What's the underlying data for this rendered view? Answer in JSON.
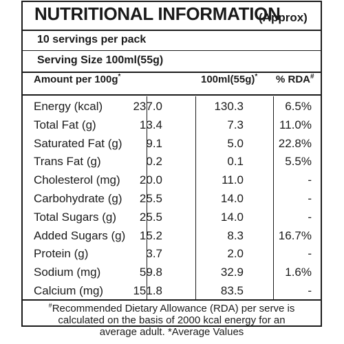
{
  "title": "NUTRITIONAL INFORMATION",
  "title_note": "(Approx)",
  "servings_per_pack": "10 servings per pack",
  "serving_size": "Serving Size 100ml(55g)",
  "columns": {
    "name": "Amount per 100g",
    "name_mark": "*",
    "per_serving": "100ml(55g)",
    "per_serving_mark": "*",
    "rda": "% RDA",
    "rda_mark": "#"
  },
  "rows": [
    {
      "name": "Energy (kcal)",
      "per_100g": "237.0",
      "per_serving": "130.3",
      "rda": "6.5%"
    },
    {
      "name": "Total Fat (g)",
      "per_100g": "13.4",
      "per_serving": "7.3",
      "rda": "11.0%"
    },
    {
      "name": "Saturated Fat (g)",
      "per_100g": "9.1",
      "per_serving": "5.0",
      "rda": "22.8%"
    },
    {
      "name": "Trans Fat (g)",
      "per_100g": "0.2",
      "per_serving": "0.1",
      "rda": "5.5%"
    },
    {
      "name": "Cholesterol (mg)",
      "per_100g": "20.0",
      "per_serving": "11.0",
      "rda": "-"
    },
    {
      "name": "Carbohydrate (g)",
      "per_100g": "25.5",
      "per_serving": "14.0",
      "rda": "-"
    },
    {
      "name": "Total Sugars (g)",
      "per_100g": "25.5",
      "per_serving": "14.0",
      "rda": "-"
    },
    {
      "name": "Added Sugars (g)",
      "per_100g": "15.2",
      "per_serving": "8.3",
      "rda": "16.7%"
    },
    {
      "name": "Protein (g)",
      "per_100g": "3.7",
      "per_serving": "2.0",
      "rda": "-"
    },
    {
      "name": "Sodium (mg)",
      "per_100g": "59.8",
      "per_serving": "32.9",
      "rda": "1.6%"
    },
    {
      "name": "Calcium (mg)",
      "per_100g": "151.8",
      "per_serving": "83.5",
      "rda": "-"
    }
  ],
  "footer": {
    "mark": "#",
    "line1": "Recommended Dietary Allowance (RDA) per serve is",
    "line2": "calculated on the basis of 2000 kcal energy for an",
    "line3": "average adult. *Average Values"
  }
}
